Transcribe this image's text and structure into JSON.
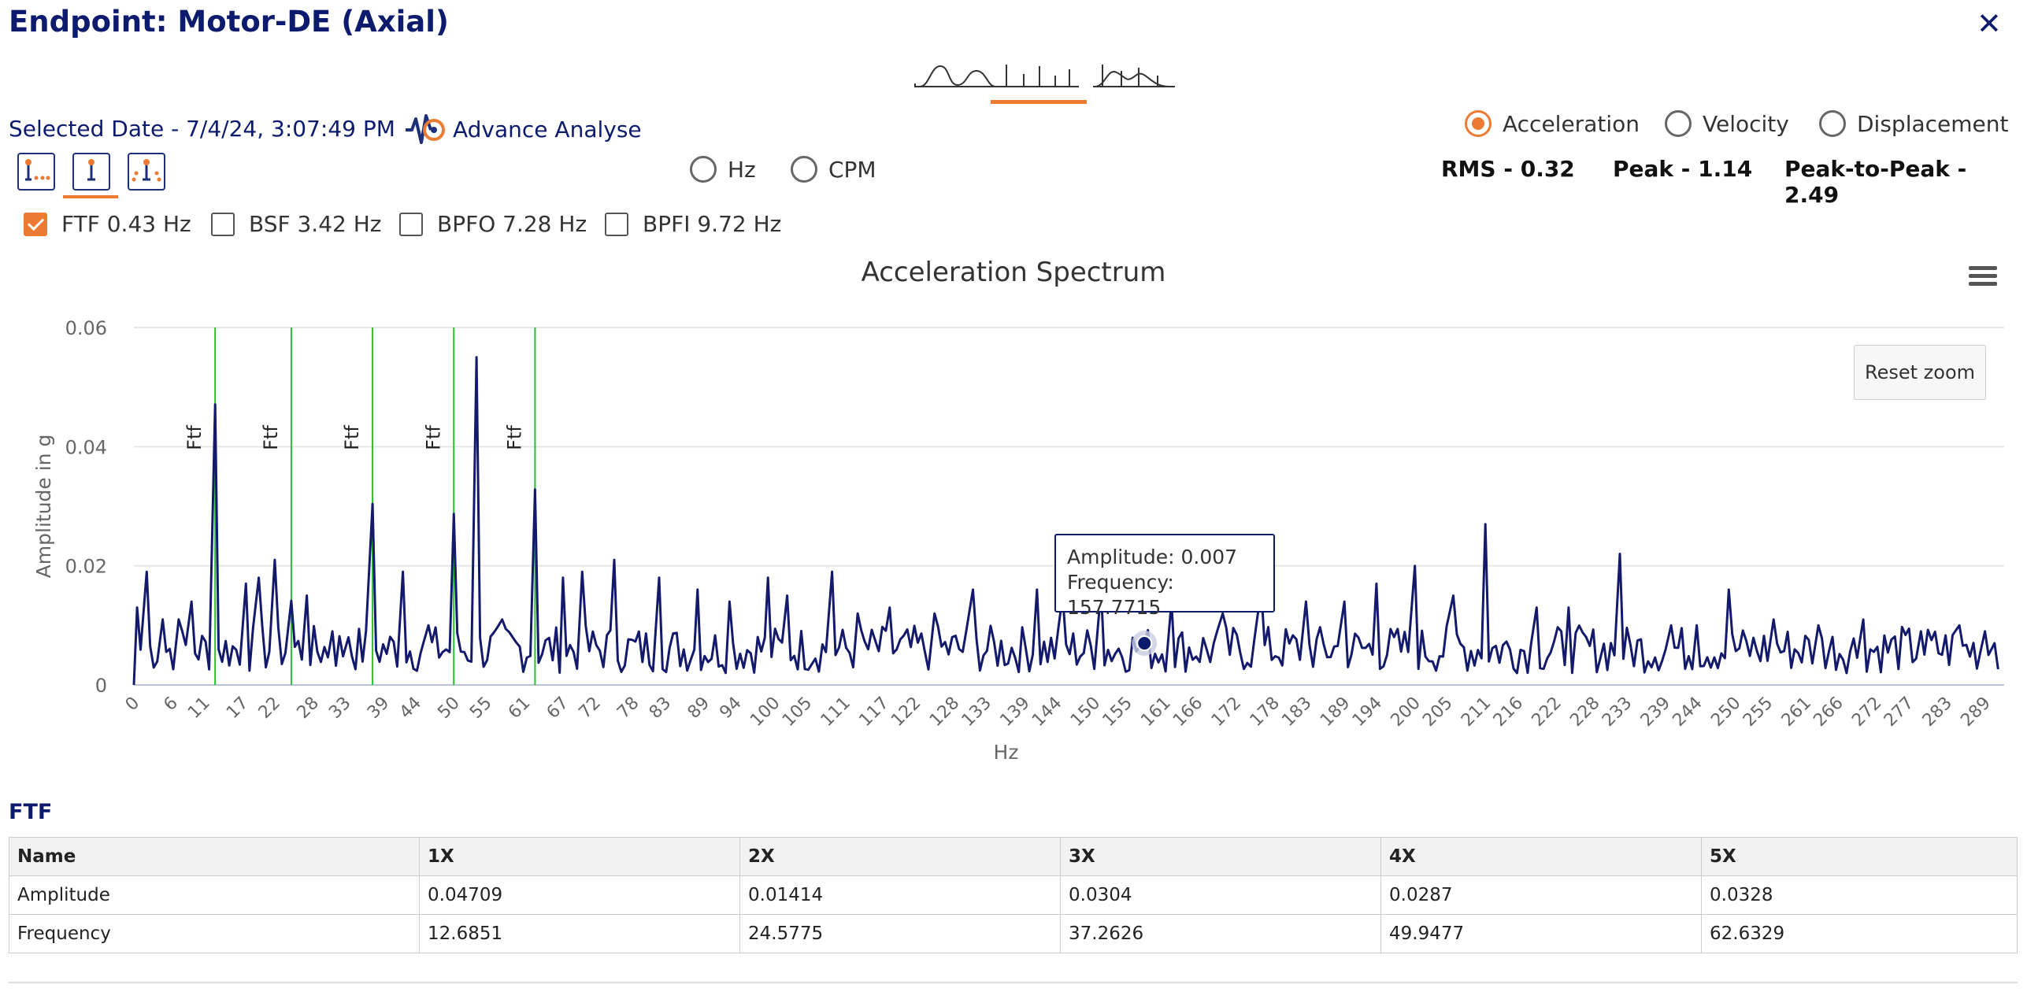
{
  "header": {
    "title": "Endpoint: Motor-DE (Axial)",
    "close_label": "✕"
  },
  "view_tabs": [
    {
      "name": "waveform",
      "icon": "waveform-icon"
    },
    {
      "name": "spectrum",
      "icon": "spectrum-icon",
      "active": true
    },
    {
      "name": "combined",
      "icon": "combined-icon"
    }
  ],
  "selected_date": "Selected Date - 7/4/24, 3:07:49 PM",
  "advance_analyse": {
    "label": "Advance Analyse",
    "icon": "advance-analyse-icon"
  },
  "cursor_tools": [
    {
      "icon": "harmonic-cursor-icon"
    },
    {
      "icon": "single-cursor-icon",
      "active": true
    },
    {
      "icon": "sideband-cursor-icon"
    }
  ],
  "unit_radios": [
    {
      "label": "Hz",
      "checked": false
    },
    {
      "label": "CPM",
      "checked": false
    }
  ],
  "measure_radios": [
    {
      "label": "Acceleration",
      "checked": true
    },
    {
      "label": "Velocity",
      "checked": false
    },
    {
      "label": "Displacement",
      "checked": false
    }
  ],
  "stats": {
    "rms": "RMS - 0.32",
    "peak": "Peak - 1.14",
    "p2p": "Peak-to-Peak - 2.49"
  },
  "fault_checks": [
    {
      "label": "FTF 0.43 Hz",
      "checked": true
    },
    {
      "label": "BSF 3.42 Hz",
      "checked": false
    },
    {
      "label": "BPFO 7.28 Hz",
      "checked": false
    },
    {
      "label": "BPFI 9.72 Hz",
      "checked": false
    }
  ],
  "colors": {
    "accent": "#ec7a32",
    "navy": "#0d1b6e",
    "marker": "#22c32b"
  },
  "chart_data": {
    "type": "line",
    "title": "Acceleration Spectrum",
    "xlabel": "Hz",
    "ylabel": "Amplitude in g",
    "xlim": [
      0,
      292
    ],
    "ylim": [
      0,
      0.06
    ],
    "yticks": [
      "0",
      "0.02",
      "0.04",
      "0.06"
    ],
    "xticks": [
      "0",
      "6",
      "11",
      "17",
      "22",
      "28",
      "33",
      "39",
      "44",
      "50",
      "55",
      "61",
      "67",
      "72",
      "78",
      "83",
      "89",
      "94",
      "100",
      "105",
      "111",
      "117",
      "122",
      "128",
      "133",
      "139",
      "144",
      "150",
      "155",
      "161",
      "166",
      "172",
      "178",
      "183",
      "189",
      "194",
      "200",
      "205",
      "211",
      "216",
      "222",
      "228",
      "233",
      "239",
      "244",
      "250",
      "255",
      "261",
      "266",
      "272",
      "277",
      "283",
      "289"
    ],
    "grid": true,
    "markers": {
      "label": "Ftf",
      "x": [
        12.6851,
        24.5775,
        37.2626,
        49.9477,
        62.6329
      ]
    },
    "series": [
      {
        "peaks": [
          [
            0.5,
            0.013
          ],
          [
            2,
            0.019
          ],
          [
            4.5,
            0.011
          ],
          [
            7,
            0.011
          ],
          [
            9,
            0.014
          ],
          [
            12.6851,
            0.04709
          ],
          [
            17.5,
            0.017
          ],
          [
            19.5,
            0.018
          ],
          [
            22,
            0.021
          ],
          [
            24.5775,
            0.01414
          ],
          [
            27,
            0.015
          ],
          [
            31,
            0.009
          ],
          [
            33.5,
            0.008
          ],
          [
            37.2626,
            0.0304
          ],
          [
            42,
            0.019
          ],
          [
            46,
            0.01
          ],
          [
            49.9477,
            0.0287
          ],
          [
            53.5,
            0.055
          ],
          [
            57.5,
            0.011
          ],
          [
            62.6329,
            0.0328
          ],
          [
            67,
            0.018
          ],
          [
            70,
            0.019
          ],
          [
            75,
            0.021
          ],
          [
            82,
            0.018
          ],
          [
            88,
            0.016
          ],
          [
            93,
            0.014
          ],
          [
            99,
            0.018
          ],
          [
            102,
            0.015
          ],
          [
            109,
            0.019
          ],
          [
            113,
            0.012
          ],
          [
            118,
            0.013
          ],
          [
            125,
            0.012
          ],
          [
            131,
            0.016
          ],
          [
            141,
            0.016
          ],
          [
            145,
            0.015
          ],
          [
            151,
            0.016
          ],
          [
            157.7715,
            0.007
          ],
          [
            162,
            0.014
          ],
          [
            170,
            0.012
          ],
          [
            176,
            0.016
          ],
          [
            183,
            0.014
          ],
          [
            189,
            0.014
          ],
          [
            194,
            0.017
          ],
          [
            200,
            0.02
          ],
          [
            206,
            0.015
          ],
          [
            211,
            0.027
          ],
          [
            219,
            0.013
          ],
          [
            224,
            0.013
          ],
          [
            232,
            0.022
          ],
          [
            240,
            0.01
          ],
          [
            244,
            0.01
          ],
          [
            249,
            0.016
          ],
          [
            256,
            0.011
          ],
          [
            263,
            0.01
          ],
          [
            270,
            0.011
          ],
          [
            279,
            0.009
          ],
          [
            285,
            0.01
          ],
          [
            289,
            0.009
          ],
          [
            290.5,
            0.007
          ]
        ]
      }
    ],
    "tooltip": {
      "amplitude": "Amplitude: 0.007",
      "frequency": "Frequency: 157.7715"
    },
    "reset_zoom_label": "Reset zoom"
  },
  "table": {
    "section_title": "FTF",
    "headers": [
      "Name",
      "1X",
      "2X",
      "3X",
      "4X",
      "5X"
    ],
    "rows": [
      [
        "Amplitude",
        "0.04709",
        "0.01414",
        "0.0304",
        "0.0287",
        "0.0328"
      ],
      [
        "Frequency",
        "12.6851",
        "24.5775",
        "37.2626",
        "49.9477",
        "62.6329"
      ]
    ]
  }
}
